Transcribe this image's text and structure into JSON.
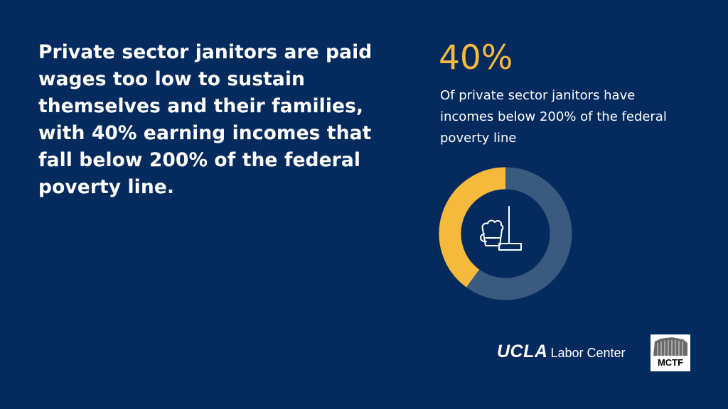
{
  "headline": "Private sector janitors are paid wages too low to sustain themselves and their families, with 40% earning incomes that fall below 200% of the federal poverty line.",
  "stat": {
    "value": "40%",
    "description": "Of private sector janitors have incomes below 200% of the federal poverty line"
  },
  "chart_data": {
    "type": "pie",
    "variant": "donut",
    "slices": [
      {
        "value": 40,
        "color": "#f5b93b"
      },
      {
        "value": 60,
        "color": "#3b5a80"
      }
    ],
    "center_icon": "bucket-and-mop-icon"
  },
  "colors": {
    "background": "#052a5e",
    "accent": "#f5b93b",
    "ring_remainder": "#3b5a80",
    "text": "#ffffff"
  },
  "logos": {
    "ucla": "UCLA",
    "labor_center": "Labor Center",
    "mctf": "MCTF"
  }
}
